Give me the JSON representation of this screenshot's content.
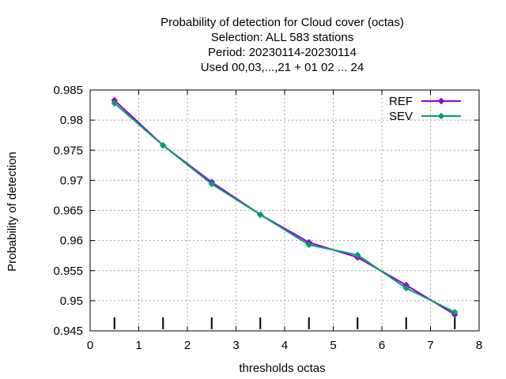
{
  "chart_data": {
    "type": "line",
    "title_lines": [
      "Probability of detection  for Cloud cover (octas)",
      "Selection: ALL    583 stations",
      "Period: 20230114-20230114",
      "Used  00,03,...,21  + 01 02 ... 24"
    ],
    "xlabel": "thresholds octas",
    "ylabel": "Probability of detection",
    "xlim": [
      0,
      8
    ],
    "ylim": [
      0.945,
      0.985
    ],
    "x_ticks": [
      "0",
      "1",
      "2",
      "3",
      "4",
      "5",
      "6",
      "7",
      "8"
    ],
    "y_ticks": [
      "0.945",
      "0.95",
      "0.955",
      "0.96",
      "0.965",
      "0.97",
      "0.975",
      "0.98",
      "0.985"
    ],
    "grid": true,
    "legend_position": "top-right",
    "threshold_markers": [
      0.5,
      1.5,
      2.5,
      3.5,
      4.5,
      5.5,
      6.5,
      7.5
    ],
    "series": [
      {
        "name": "REF",
        "color": "#9400d3",
        "x": [
          0.5,
          1.5,
          2.5,
          3.5,
          4.5,
          5.5,
          6.5,
          7.5
        ],
        "y": [
          0.9833,
          0.9758,
          0.9697,
          0.9643,
          0.9597,
          0.9572,
          0.9526,
          0.9477
        ]
      },
      {
        "name": "SEV",
        "color": "#009e73",
        "x": [
          0.5,
          1.5,
          2.5,
          3.5,
          4.5,
          5.5,
          6.5,
          7.5
        ],
        "y": [
          0.9828,
          0.9758,
          0.9694,
          0.9643,
          0.9593,
          0.9576,
          0.9521,
          0.9481
        ]
      }
    ]
  }
}
